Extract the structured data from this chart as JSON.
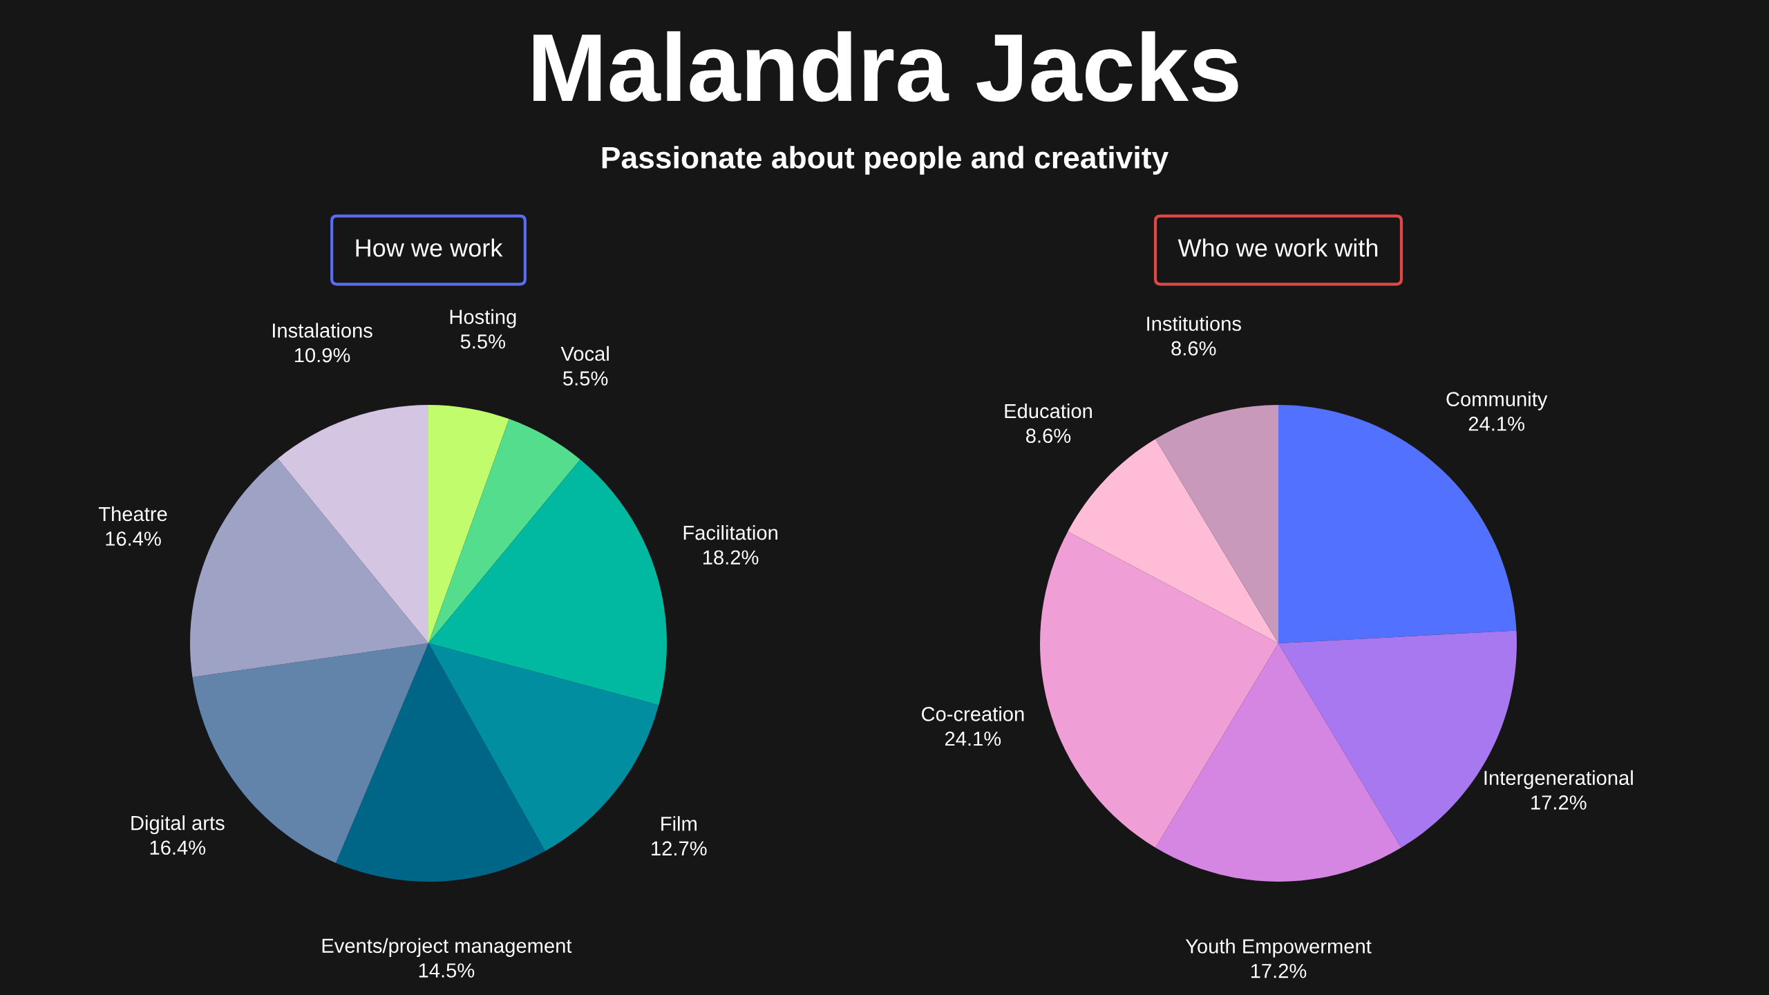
{
  "chart_data": [
    {
      "type": "pie",
      "title": "How we work",
      "annotations": [
        "Malandra Jacks",
        "Passionate about people and creativity"
      ],
      "categories": [
        "Hosting",
        "Vocal",
        "Facilitation",
        "Film",
        "Events/project management",
        "Digital arts",
        "Theatre",
        "Instalations"
      ],
      "values": [
        5.5,
        5.5,
        18.2,
        12.7,
        14.5,
        16.4,
        16.4,
        10.9
      ],
      "colors": [
        "#c0fc6c",
        "#54dd8c",
        "#00b9a0",
        "#008ea0",
        "#006688",
        "#6283aa",
        "#9ea3c6",
        "#d4c5e3"
      ],
      "value_labels": [
        "5.5%",
        "5.5%",
        "18.2%",
        "12.7%",
        "14.5%",
        "16.4%",
        "16.4%",
        "10.9%"
      ]
    },
    {
      "type": "pie",
      "title": "Who we work with",
      "categories": [
        "Community",
        "Intergenerational",
        "Youth Empowerment",
        "Co-creation",
        "Education",
        "Institutions"
      ],
      "values": [
        24.1,
        17.2,
        17.2,
        24.1,
        8.6,
        8.6
      ],
      "colors": [
        "#5271ff",
        "#a878f0",
        "#d585e2",
        "#f09ed6",
        "#ffbcd6",
        "#c999bc"
      ],
      "value_labels": [
        "24.1%",
        "17.2%",
        "17.2%",
        "24.1%",
        "8.6%",
        "8.6%"
      ]
    }
  ]
}
